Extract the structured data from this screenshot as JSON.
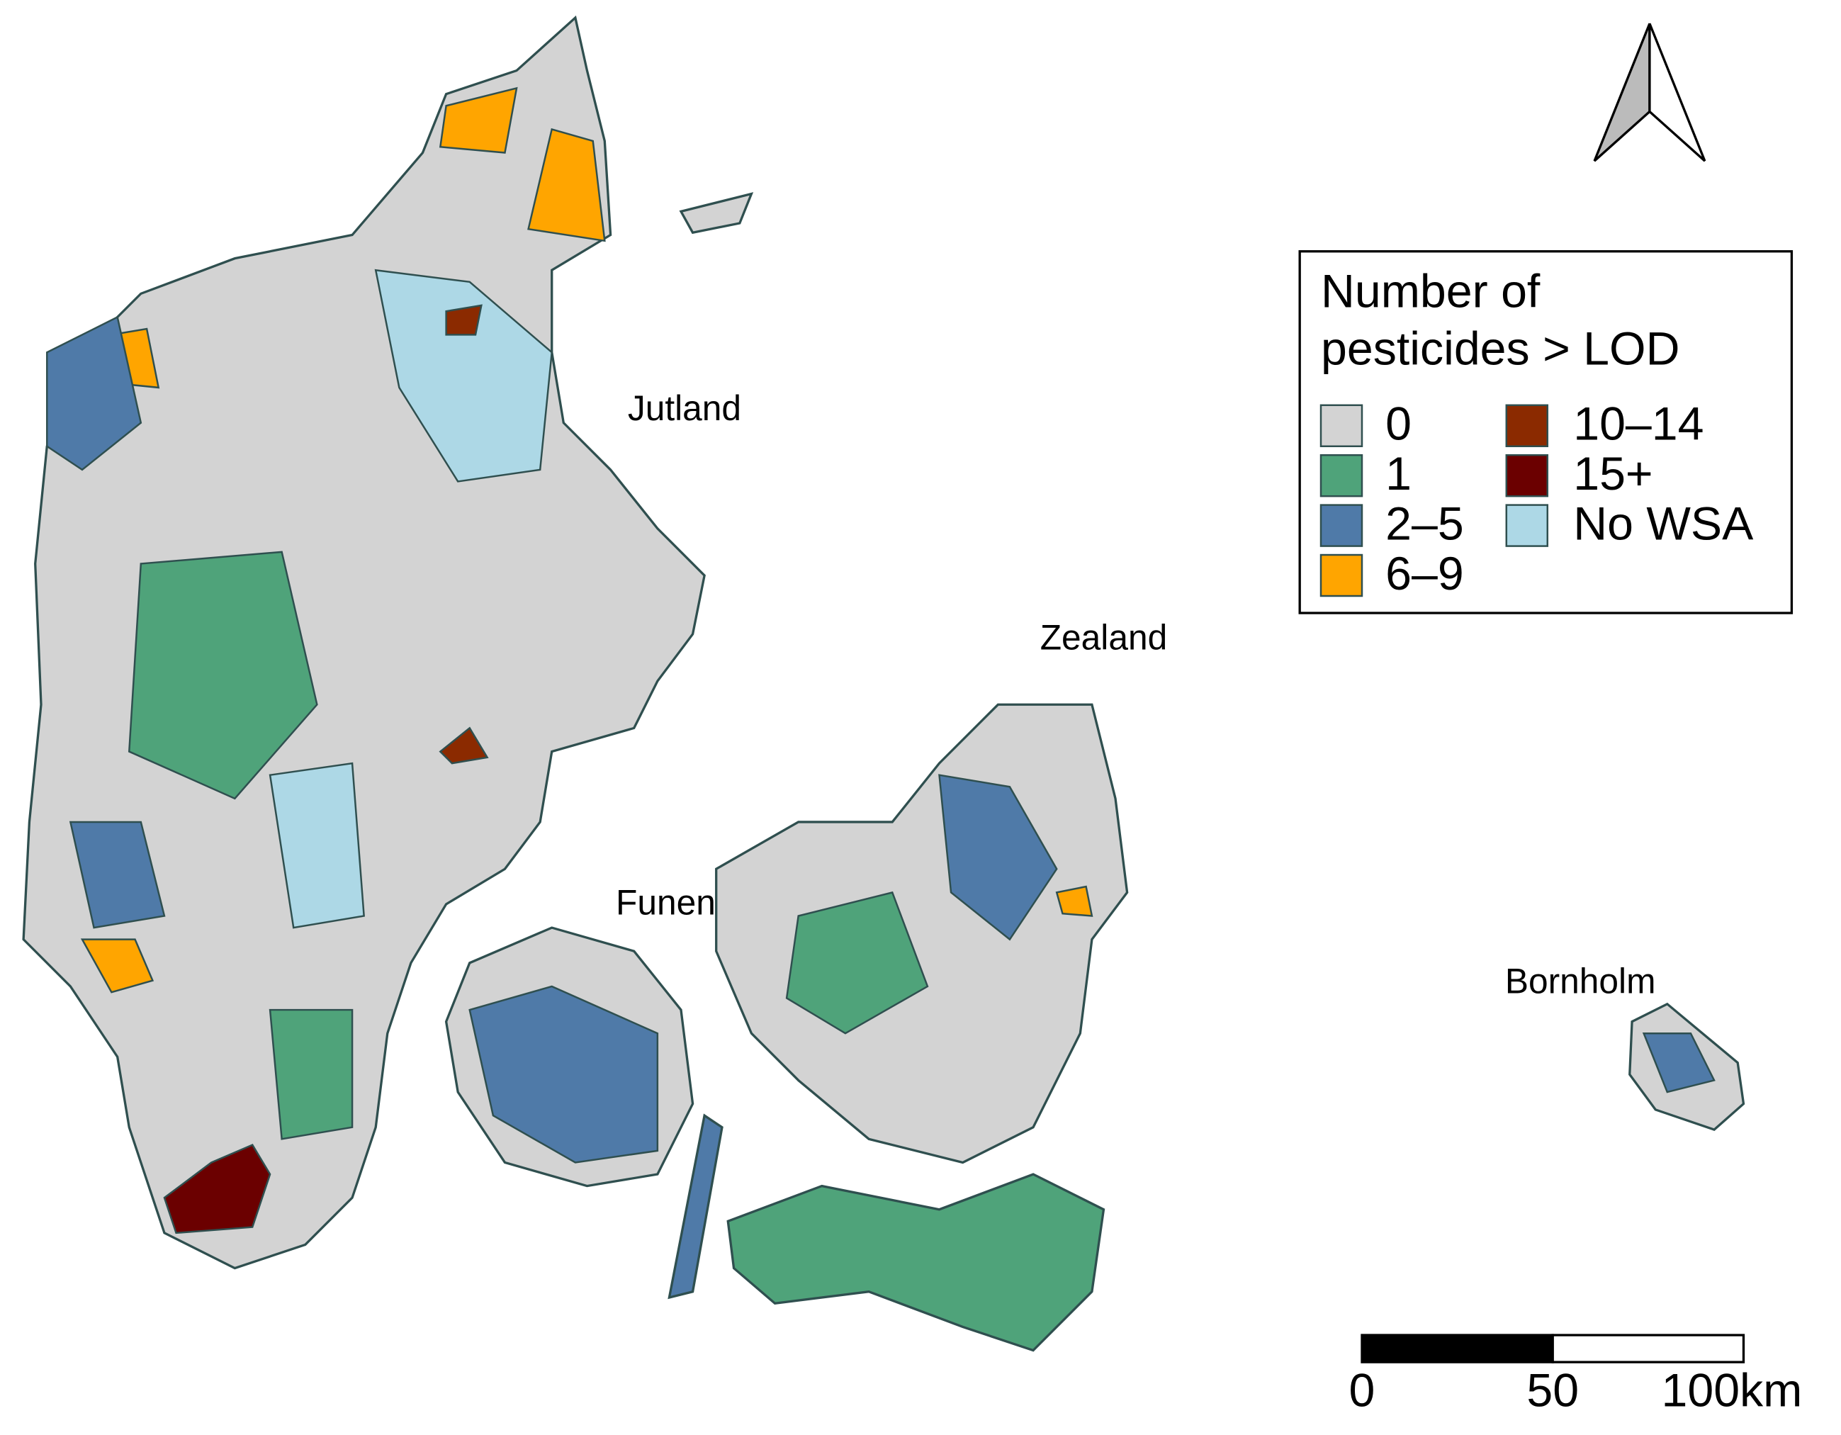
{
  "map": {
    "region_labels": [
      "Jutland",
      "Zealand",
      "Funen",
      "Bornholm"
    ],
    "legend": {
      "title": [
        "Number of",
        "pesticides > LOD"
      ],
      "items": [
        {
          "label": "0",
          "color": "#d3d3d3"
        },
        {
          "label": "1",
          "color": "#4fa37a"
        },
        {
          "label": "2–5",
          "color": "#4f7aa8"
        },
        {
          "label": "6–9",
          "color": "#ffa500"
        },
        {
          "label": "10–14",
          "color": "#8b2a00"
        },
        {
          "label": "15+",
          "color": "#6b0000"
        },
        {
          "label": "No WSA",
          "color": "#add8e6"
        }
      ]
    },
    "scale_bar": {
      "ticks": [
        {
          "value": 0,
          "label": "0"
        },
        {
          "value": 50,
          "label": "50"
        },
        {
          "value": 100,
          "label": "100km"
        }
      ]
    }
  }
}
